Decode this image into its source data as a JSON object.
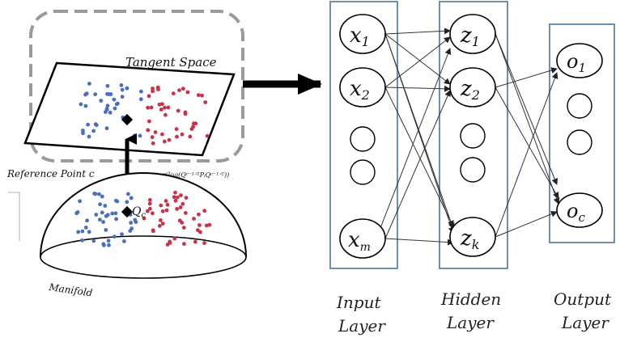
{
  "left": {
    "tangent_label": "Tangent Space",
    "reference_label": "Reference Point c",
    "formula": "sᵢ = upper(log(Qᶜ⁻¹ᐟ²PᵢQᶜ⁻¹ᐟ²))",
    "q_label": "Q",
    "q_sub": "c",
    "manifold_label": "Manifold"
  },
  "network": {
    "input_nodes": [
      {
        "base": "x",
        "sub": "1"
      },
      {
        "base": "x",
        "sub": "2"
      },
      {
        "base": "x",
        "sub": "m"
      }
    ],
    "hidden_nodes": [
      {
        "base": "z",
        "sub": "1"
      },
      {
        "base": "z",
        "sub": "2"
      },
      {
        "base": "z",
        "sub": "k"
      }
    ],
    "output_nodes": [
      {
        "base": "o",
        "sub": "1"
      },
      {
        "base": "o",
        "sub": "c"
      }
    ],
    "layers": [
      {
        "line1": "Input",
        "line2": "Layer"
      },
      {
        "line1": "Hidden",
        "line2": "Layer"
      },
      {
        "line1": "Output",
        "line2": "Layer"
      }
    ]
  },
  "colors": {
    "layer_box": "#6d8fb0",
    "blue_points": "#4a6fbf",
    "red_points": "#c8334a",
    "dashed_box": "#9a9a9a"
  }
}
